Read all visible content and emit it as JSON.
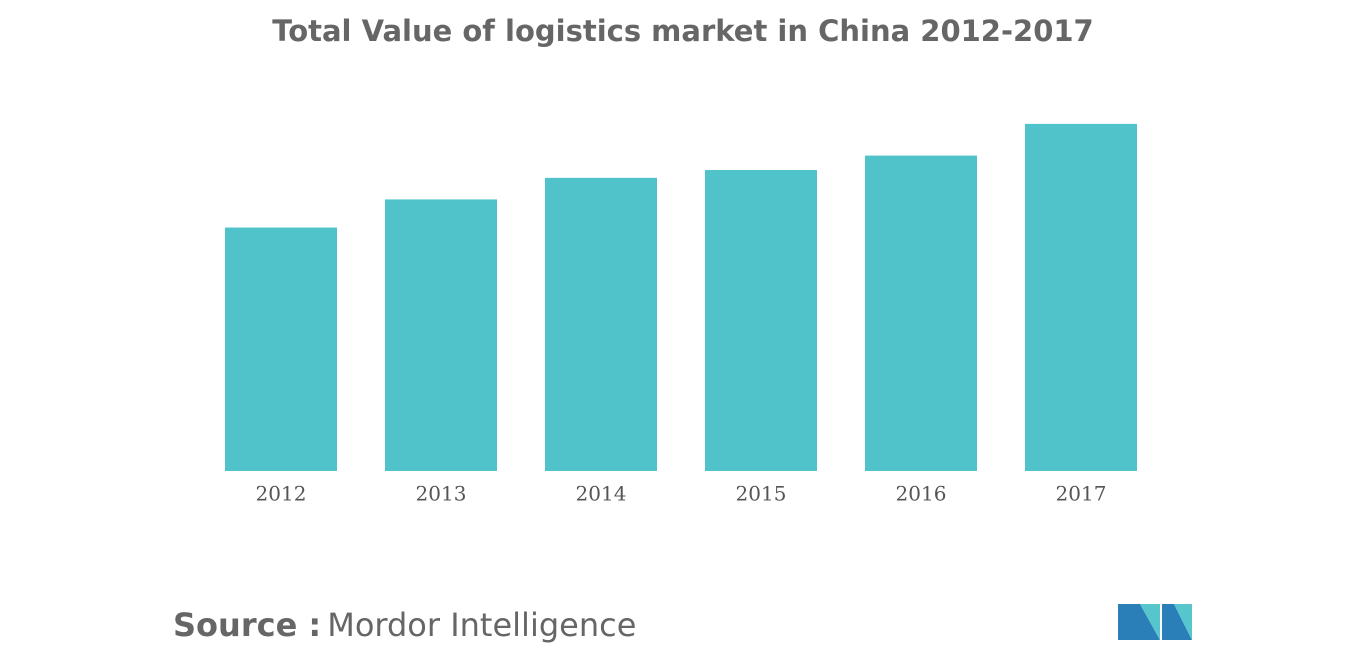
{
  "chart_data": {
    "type": "bar",
    "title": "Total Value of logistics market in China 2012-2017",
    "categories": [
      "2012",
      "2013",
      "2014",
      "2015",
      "2016",
      "2017"
    ],
    "values": [
      177.3,
      197.8,
      213.5,
      219.2,
      229.7,
      252.8
    ],
    "color": "#4fc3c9",
    "ylim": [
      0,
      260
    ],
    "grid": false,
    "source_label": "Source :",
    "source": "Mordor Intelligence"
  }
}
